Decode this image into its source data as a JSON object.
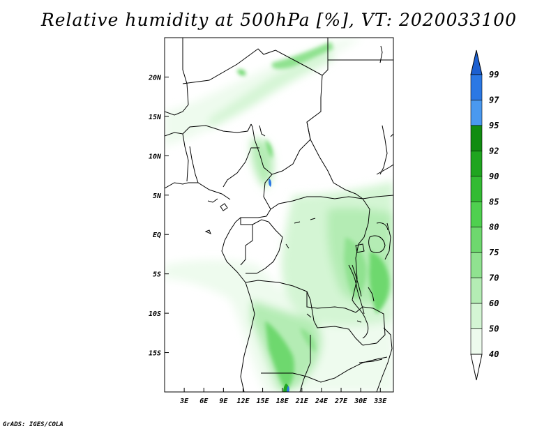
{
  "title": "Relative humidity at 500hPa [%], VT: 2020033100",
  "credit": "GrADS: IGES/COLA",
  "map": {
    "lon_range": [
      0,
      35
    ],
    "lat_range": [
      -20,
      25
    ],
    "lon_ticks": [
      "3E",
      "6E",
      "9E",
      "12E",
      "15E",
      "18E",
      "21E",
      "24E",
      "27E",
      "30E",
      "33E"
    ],
    "lat_ticks": [
      "20N",
      "15N",
      "10N",
      "5N",
      "EQ",
      "5S",
      "10S",
      "15S"
    ]
  },
  "colorbar": {
    "levels": [
      "99",
      "97",
      "95",
      "92",
      "90",
      "85",
      "80",
      "75",
      "70",
      "60",
      "50",
      "40"
    ],
    "colors": [
      "#1c5fd0",
      "#2b78e4",
      "#4a99ef",
      "#118c11",
      "#1fa51f",
      "#33bb33",
      "#4fd04f",
      "#6ed86e",
      "#90e290",
      "#b4ecb4",
      "#d4f5d4",
      "#eefbee"
    ]
  }
}
